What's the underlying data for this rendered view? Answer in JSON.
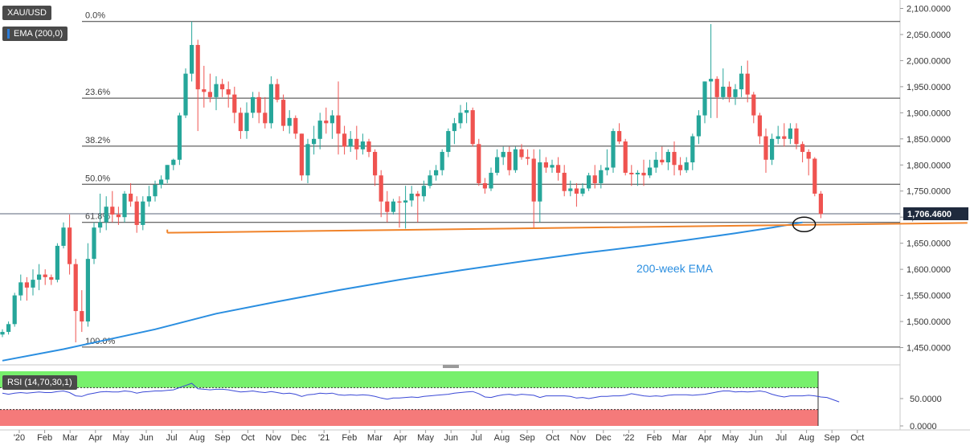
{
  "toolbar": {
    "symbol": "XAU/USD",
    "ema_legend": "EMA (200,0)",
    "rsi_legend": "RSI (14,70,30,1)"
  },
  "colors": {
    "bull": "#26a69a",
    "bear": "#ef5350",
    "ema": "#2a8ee0",
    "trendline": "#f0832a",
    "rsi_line": "#3b49d6",
    "rsi_overbought": "#77f06c",
    "rsi_oversold": "#f57a7a",
    "price_tag": "#1f2a3d"
  },
  "chart_data": [
    {
      "type": "candlestick",
      "title": "",
      "series_name": "XAU/USD",
      "timeframe": "weekly",
      "ylim": [
        1420,
        2110
      ],
      "y_ticks": [
        1450,
        1500,
        1550,
        1600,
        1650,
        1700,
        1750,
        1800,
        1850,
        1900,
        1950,
        2000,
        2050,
        2100
      ],
      "y_tick_labels": [
        "1,450.0000",
        "1,500.0000",
        "1,550.0000",
        "1,600.0000",
        "1,650.0000",
        "1,700.0000",
        "1,750.0000",
        "1,800.0000",
        "1,850.0000",
        "1,900.0000",
        "1,950.0000",
        "2,000.0000",
        "2,050.0000",
        "2,100.0000"
      ],
      "x_tick_labels": [
        "'20",
        "Feb",
        "Mar",
        "Apr",
        "May",
        "Jun",
        "Jul",
        "Aug",
        "Sep",
        "Oct",
        "Nov",
        "Dec",
        "'21",
        "Feb",
        "Mar",
        "Apr",
        "May",
        "Jun",
        "Jul",
        "Aug",
        "Sep",
        "Oct",
        "Nov",
        "Dec",
        "'22",
        "Feb",
        "Mar",
        "Apr",
        "May",
        "Jun",
        "Jul",
        "Aug",
        "Sep",
        "Oct"
      ],
      "last_price": 1706.46,
      "last_price_label": "1,706.4600",
      "candles": [
        {
          "o": 1475,
          "h": 1485,
          "l": 1470,
          "c": 1480
        },
        {
          "o": 1480,
          "h": 1500,
          "l": 1475,
          "c": 1495
        },
        {
          "o": 1495,
          "h": 1555,
          "l": 1490,
          "c": 1550
        },
        {
          "o": 1550,
          "h": 1590,
          "l": 1540,
          "c": 1575
        },
        {
          "o": 1575,
          "h": 1585,
          "l": 1540,
          "c": 1565
        },
        {
          "o": 1565,
          "h": 1600,
          "l": 1550,
          "c": 1580
        },
        {
          "o": 1580,
          "h": 1610,
          "l": 1560,
          "c": 1590
        },
        {
          "o": 1590,
          "h": 1600,
          "l": 1570,
          "c": 1585
        },
        {
          "o": 1585,
          "h": 1590,
          "l": 1570,
          "c": 1580
        },
        {
          "o": 1580,
          "h": 1650,
          "l": 1575,
          "c": 1645
        },
        {
          "o": 1645,
          "h": 1690,
          "l": 1640,
          "c": 1680
        },
        {
          "o": 1680,
          "h": 1705,
          "l": 1590,
          "c": 1610
        },
        {
          "o": 1610,
          "h": 1620,
          "l": 1460,
          "c": 1520
        },
        {
          "o": 1520,
          "h": 1560,
          "l": 1480,
          "c": 1500
        },
        {
          "o": 1500,
          "h": 1650,
          "l": 1490,
          "c": 1620
        },
        {
          "o": 1620,
          "h": 1690,
          "l": 1610,
          "c": 1680
        },
        {
          "o": 1680,
          "h": 1745,
          "l": 1670,
          "c": 1690
        },
        {
          "o": 1690,
          "h": 1740,
          "l": 1675,
          "c": 1720
        },
        {
          "o": 1720,
          "h": 1750,
          "l": 1690,
          "c": 1705
        },
        {
          "o": 1705,
          "h": 1720,
          "l": 1685,
          "c": 1700
        },
        {
          "o": 1700,
          "h": 1750,
          "l": 1690,
          "c": 1745
        },
        {
          "o": 1745,
          "h": 1765,
          "l": 1720,
          "c": 1730
        },
        {
          "o": 1730,
          "h": 1740,
          "l": 1670,
          "c": 1685
        },
        {
          "o": 1685,
          "h": 1740,
          "l": 1675,
          "c": 1730
        },
        {
          "o": 1730,
          "h": 1760,
          "l": 1720,
          "c": 1740
        },
        {
          "o": 1740,
          "h": 1770,
          "l": 1730,
          "c": 1762
        },
        {
          "o": 1762,
          "h": 1780,
          "l": 1755,
          "c": 1772
        },
        {
          "o": 1772,
          "h": 1800,
          "l": 1765,
          "c": 1800
        },
        {
          "o": 1800,
          "h": 1812,
          "l": 1790,
          "c": 1810
        },
        {
          "o": 1810,
          "h": 1900,
          "l": 1800,
          "c": 1895
        },
        {
          "o": 1895,
          "h": 1985,
          "l": 1890,
          "c": 1975
        },
        {
          "o": 1975,
          "h": 2075,
          "l": 1960,
          "c": 2030
        },
        {
          "o": 2030,
          "h": 2040,
          "l": 1865,
          "c": 1945
        },
        {
          "o": 1945,
          "h": 1990,
          "l": 1910,
          "c": 1940
        },
        {
          "o": 1940,
          "h": 1975,
          "l": 1920,
          "c": 1930
        },
        {
          "o": 1930,
          "h": 1970,
          "l": 1905,
          "c": 1955
        },
        {
          "o": 1955,
          "h": 1965,
          "l": 1930,
          "c": 1945
        },
        {
          "o": 1945,
          "h": 1960,
          "l": 1910,
          "c": 1935
        },
        {
          "o": 1935,
          "h": 1950,
          "l": 1880,
          "c": 1900
        },
        {
          "o": 1900,
          "h": 1910,
          "l": 1850,
          "c": 1865
        },
        {
          "o": 1865,
          "h": 1920,
          "l": 1850,
          "c": 1900
        },
        {
          "o": 1900,
          "h": 1940,
          "l": 1890,
          "c": 1930
        },
        {
          "o": 1930,
          "h": 1940,
          "l": 1880,
          "c": 1900
        },
        {
          "o": 1900,
          "h": 1930,
          "l": 1870,
          "c": 1880
        },
        {
          "o": 1880,
          "h": 1970,
          "l": 1870,
          "c": 1955
        },
        {
          "o": 1955,
          "h": 1965,
          "l": 1920,
          "c": 1925
        },
        {
          "o": 1925,
          "h": 1935,
          "l": 1865,
          "c": 1875
        },
        {
          "o": 1875,
          "h": 1905,
          "l": 1860,
          "c": 1890
        },
        {
          "o": 1890,
          "h": 1895,
          "l": 1850,
          "c": 1860
        },
        {
          "o": 1860,
          "h": 1860,
          "l": 1770,
          "c": 1780
        },
        {
          "o": 1780,
          "h": 1850,
          "l": 1765,
          "c": 1840
        },
        {
          "o": 1840,
          "h": 1875,
          "l": 1820,
          "c": 1850
        },
        {
          "o": 1850,
          "h": 1900,
          "l": 1830,
          "c": 1885
        },
        {
          "o": 1885,
          "h": 1910,
          "l": 1860,
          "c": 1880
        },
        {
          "o": 1880,
          "h": 1905,
          "l": 1850,
          "c": 1895
        },
        {
          "o": 1895,
          "h": 1960,
          "l": 1820,
          "c": 1860
        },
        {
          "o": 1860,
          "h": 1875,
          "l": 1820,
          "c": 1835
        },
        {
          "o": 1835,
          "h": 1865,
          "l": 1825,
          "c": 1850
        },
        {
          "o": 1850,
          "h": 1875,
          "l": 1810,
          "c": 1830
        },
        {
          "o": 1830,
          "h": 1860,
          "l": 1820,
          "c": 1845
        },
        {
          "o": 1845,
          "h": 1850,
          "l": 1815,
          "c": 1825
        },
        {
          "o": 1825,
          "h": 1830,
          "l": 1760,
          "c": 1780
        },
        {
          "o": 1780,
          "h": 1790,
          "l": 1700,
          "c": 1730
        },
        {
          "o": 1730,
          "h": 1750,
          "l": 1690,
          "c": 1710
        },
        {
          "o": 1710,
          "h": 1735,
          "l": 1705,
          "c": 1730
        },
        {
          "o": 1730,
          "h": 1740,
          "l": 1680,
          "c": 1728
        },
        {
          "o": 1728,
          "h": 1760,
          "l": 1678,
          "c": 1732
        },
        {
          "o": 1732,
          "h": 1760,
          "l": 1720,
          "c": 1745
        },
        {
          "o": 1745,
          "h": 1750,
          "l": 1690,
          "c": 1740
        },
        {
          "o": 1740,
          "h": 1770,
          "l": 1730,
          "c": 1760
        },
        {
          "o": 1760,
          "h": 1790,
          "l": 1755,
          "c": 1780
        },
        {
          "o": 1780,
          "h": 1800,
          "l": 1770,
          "c": 1790
        },
        {
          "o": 1790,
          "h": 1830,
          "l": 1780,
          "c": 1825
        },
        {
          "o": 1825,
          "h": 1870,
          "l": 1815,
          "c": 1865
        },
        {
          "o": 1865,
          "h": 1890,
          "l": 1840,
          "c": 1880
        },
        {
          "o": 1880,
          "h": 1915,
          "l": 1870,
          "c": 1900
        },
        {
          "o": 1900,
          "h": 1920,
          "l": 1880,
          "c": 1905
        },
        {
          "o": 1905,
          "h": 1910,
          "l": 1835,
          "c": 1840
        },
        {
          "o": 1840,
          "h": 1850,
          "l": 1760,
          "c": 1765
        },
        {
          "o": 1765,
          "h": 1775,
          "l": 1745,
          "c": 1755
        },
        {
          "o": 1755,
          "h": 1795,
          "l": 1750,
          "c": 1785
        },
        {
          "o": 1785,
          "h": 1830,
          "l": 1780,
          "c": 1815
        },
        {
          "o": 1815,
          "h": 1835,
          "l": 1800,
          "c": 1825
        },
        {
          "o": 1825,
          "h": 1835,
          "l": 1780,
          "c": 1790
        },
        {
          "o": 1790,
          "h": 1835,
          "l": 1785,
          "c": 1830
        },
        {
          "o": 1830,
          "h": 1840,
          "l": 1810,
          "c": 1815
        },
        {
          "o": 1815,
          "h": 1830,
          "l": 1800,
          "c": 1812
        },
        {
          "o": 1812,
          "h": 1830,
          "l": 1680,
          "c": 1730
        },
        {
          "o": 1730,
          "h": 1830,
          "l": 1690,
          "c": 1805
        },
        {
          "o": 1805,
          "h": 1815,
          "l": 1785,
          "c": 1795
        },
        {
          "o": 1795,
          "h": 1810,
          "l": 1785,
          "c": 1800
        },
        {
          "o": 1800,
          "h": 1815,
          "l": 1770,
          "c": 1785
        },
        {
          "o": 1785,
          "h": 1800,
          "l": 1740,
          "c": 1750
        },
        {
          "o": 1750,
          "h": 1770,
          "l": 1740,
          "c": 1755
        },
        {
          "o": 1755,
          "h": 1765,
          "l": 1720,
          "c": 1745
        },
        {
          "o": 1745,
          "h": 1765,
          "l": 1740,
          "c": 1755
        },
        {
          "o": 1755,
          "h": 1785,
          "l": 1750,
          "c": 1780
        },
        {
          "o": 1780,
          "h": 1800,
          "l": 1755,
          "c": 1765
        },
        {
          "o": 1765,
          "h": 1800,
          "l": 1755,
          "c": 1790
        },
        {
          "o": 1790,
          "h": 1830,
          "l": 1780,
          "c": 1795
        },
        {
          "o": 1795,
          "h": 1870,
          "l": 1785,
          "c": 1865
        },
        {
          "o": 1865,
          "h": 1880,
          "l": 1840,
          "c": 1845
        },
        {
          "o": 1845,
          "h": 1850,
          "l": 1780,
          "c": 1785
        },
        {
          "o": 1785,
          "h": 1800,
          "l": 1760,
          "c": 1782
        },
        {
          "o": 1782,
          "h": 1790,
          "l": 1760,
          "c": 1785
        },
        {
          "o": 1785,
          "h": 1810,
          "l": 1760,
          "c": 1780
        },
        {
          "o": 1780,
          "h": 1810,
          "l": 1775,
          "c": 1795
        },
        {
          "o": 1795,
          "h": 1825,
          "l": 1785,
          "c": 1810
        },
        {
          "o": 1810,
          "h": 1835,
          "l": 1800,
          "c": 1805
        },
        {
          "o": 1805,
          "h": 1830,
          "l": 1790,
          "c": 1825
        },
        {
          "o": 1825,
          "h": 1845,
          "l": 1780,
          "c": 1800
        },
        {
          "o": 1800,
          "h": 1815,
          "l": 1780,
          "c": 1790
        },
        {
          "o": 1790,
          "h": 1815,
          "l": 1785,
          "c": 1805
        },
        {
          "o": 1805,
          "h": 1860,
          "l": 1790,
          "c": 1855
        },
        {
          "o": 1855,
          "h": 1905,
          "l": 1840,
          "c": 1895
        },
        {
          "o": 1895,
          "h": 1960,
          "l": 1880,
          "c": 1960
        },
        {
          "o": 1960,
          "h": 2070,
          "l": 1890,
          "c": 1965
        },
        {
          "o": 1965,
          "h": 1970,
          "l": 1890,
          "c": 1930
        },
        {
          "o": 1930,
          "h": 1985,
          "l": 1925,
          "c": 1950
        },
        {
          "o": 1950,
          "h": 1960,
          "l": 1920,
          "c": 1930
        },
        {
          "o": 1930,
          "h": 1955,
          "l": 1915,
          "c": 1945
        },
        {
          "o": 1945,
          "h": 1990,
          "l": 1930,
          "c": 1975
        },
        {
          "o": 1975,
          "h": 2000,
          "l": 1920,
          "c": 1935
        },
        {
          "o": 1935,
          "h": 1940,
          "l": 1880,
          "c": 1895
        },
        {
          "o": 1895,
          "h": 1900,
          "l": 1840,
          "c": 1855
        },
        {
          "o": 1855,
          "h": 1870,
          "l": 1785,
          "c": 1810
        },
        {
          "o": 1810,
          "h": 1860,
          "l": 1800,
          "c": 1850
        },
        {
          "o": 1850,
          "h": 1875,
          "l": 1840,
          "c": 1855
        },
        {
          "o": 1855,
          "h": 1880,
          "l": 1835,
          "c": 1850
        },
        {
          "o": 1850,
          "h": 1880,
          "l": 1840,
          "c": 1870
        },
        {
          "o": 1870,
          "h": 1880,
          "l": 1830,
          "c": 1840
        },
        {
          "o": 1840,
          "h": 1845,
          "l": 1805,
          "c": 1825
        },
        {
          "o": 1825,
          "h": 1830,
          "l": 1780,
          "c": 1812
        },
        {
          "o": 1812,
          "h": 1815,
          "l": 1740,
          "c": 1745
        },
        {
          "o": 1745,
          "h": 1750,
          "l": 1698,
          "c": 1706
        }
      ],
      "ema_200": [
        [
          0,
          1425
        ],
        [
          10,
          1447
        ],
        [
          25,
          1485
        ],
        [
          35,
          1515
        ],
        [
          45,
          1538
        ],
        [
          55,
          1560
        ],
        [
          65,
          1580
        ],
        [
          75,
          1598
        ],
        [
          85,
          1615
        ],
        [
          95,
          1631
        ],
        [
          105,
          1645
        ],
        [
          112,
          1656
        ],
        [
          120,
          1669
        ],
        [
          126,
          1680
        ],
        [
          131,
          1690
        ]
      ],
      "fib_levels": [
        {
          "label": "0.0%",
          "value": 2075
        },
        {
          "label": "23.6%",
          "value": 1928
        },
        {
          "label": "38.2%",
          "value": 1836
        },
        {
          "label": "50.0%",
          "value": 1763
        },
        {
          "label": "61.8%",
          "value": 1690
        },
        {
          "label": "100.0%",
          "value": 1451
        }
      ],
      "trendline": {
        "from": [
          27,
          1670
        ],
        "to": [
          158,
          1689
        ]
      },
      "annotation": "200-week EMA",
      "highlight": {
        "x": 131,
        "y": 1686
      }
    },
    {
      "type": "line",
      "title": "",
      "series_name": "RSI (14,70,30,1)",
      "ylim": [
        0,
        100
      ],
      "y_ticks": [
        0,
        50
      ],
      "y_tick_labels": [
        "0.0000",
        "50.0000"
      ],
      "overbought": 70,
      "oversold": 30,
      "values": [
        60,
        58,
        60,
        61,
        60,
        61,
        62,
        61,
        61,
        63,
        64,
        61,
        55,
        54,
        58,
        60,
        62,
        63,
        62,
        62,
        64,
        63,
        60,
        62,
        63,
        64,
        64,
        65,
        66,
        70,
        74,
        78,
        68,
        67,
        66,
        67,
        67,
        66,
        64,
        62,
        63,
        64,
        62,
        61,
        63,
        61,
        59,
        60,
        58,
        54,
        57,
        58,
        60,
        59,
        60,
        57,
        56,
        57,
        56,
        57,
        56,
        54,
        51,
        49,
        51,
        51,
        52,
        53,
        52,
        54,
        55,
        56,
        57,
        58,
        60,
        61,
        62,
        63,
        59,
        53,
        52,
        55,
        57,
        58,
        56,
        58,
        57,
        56,
        52,
        55,
        55,
        55,
        55,
        54,
        51,
        52,
        50,
        52,
        54,
        54,
        55,
        55,
        56,
        59,
        57,
        55,
        54,
        55,
        54,
        56,
        57,
        57,
        57,
        56,
        57,
        58,
        60,
        62,
        64,
        64,
        62,
        63,
        62,
        63,
        64,
        62,
        58,
        55,
        53,
        55,
        55,
        55,
        56,
        55,
        53,
        52,
        48,
        44
      ]
    }
  ]
}
